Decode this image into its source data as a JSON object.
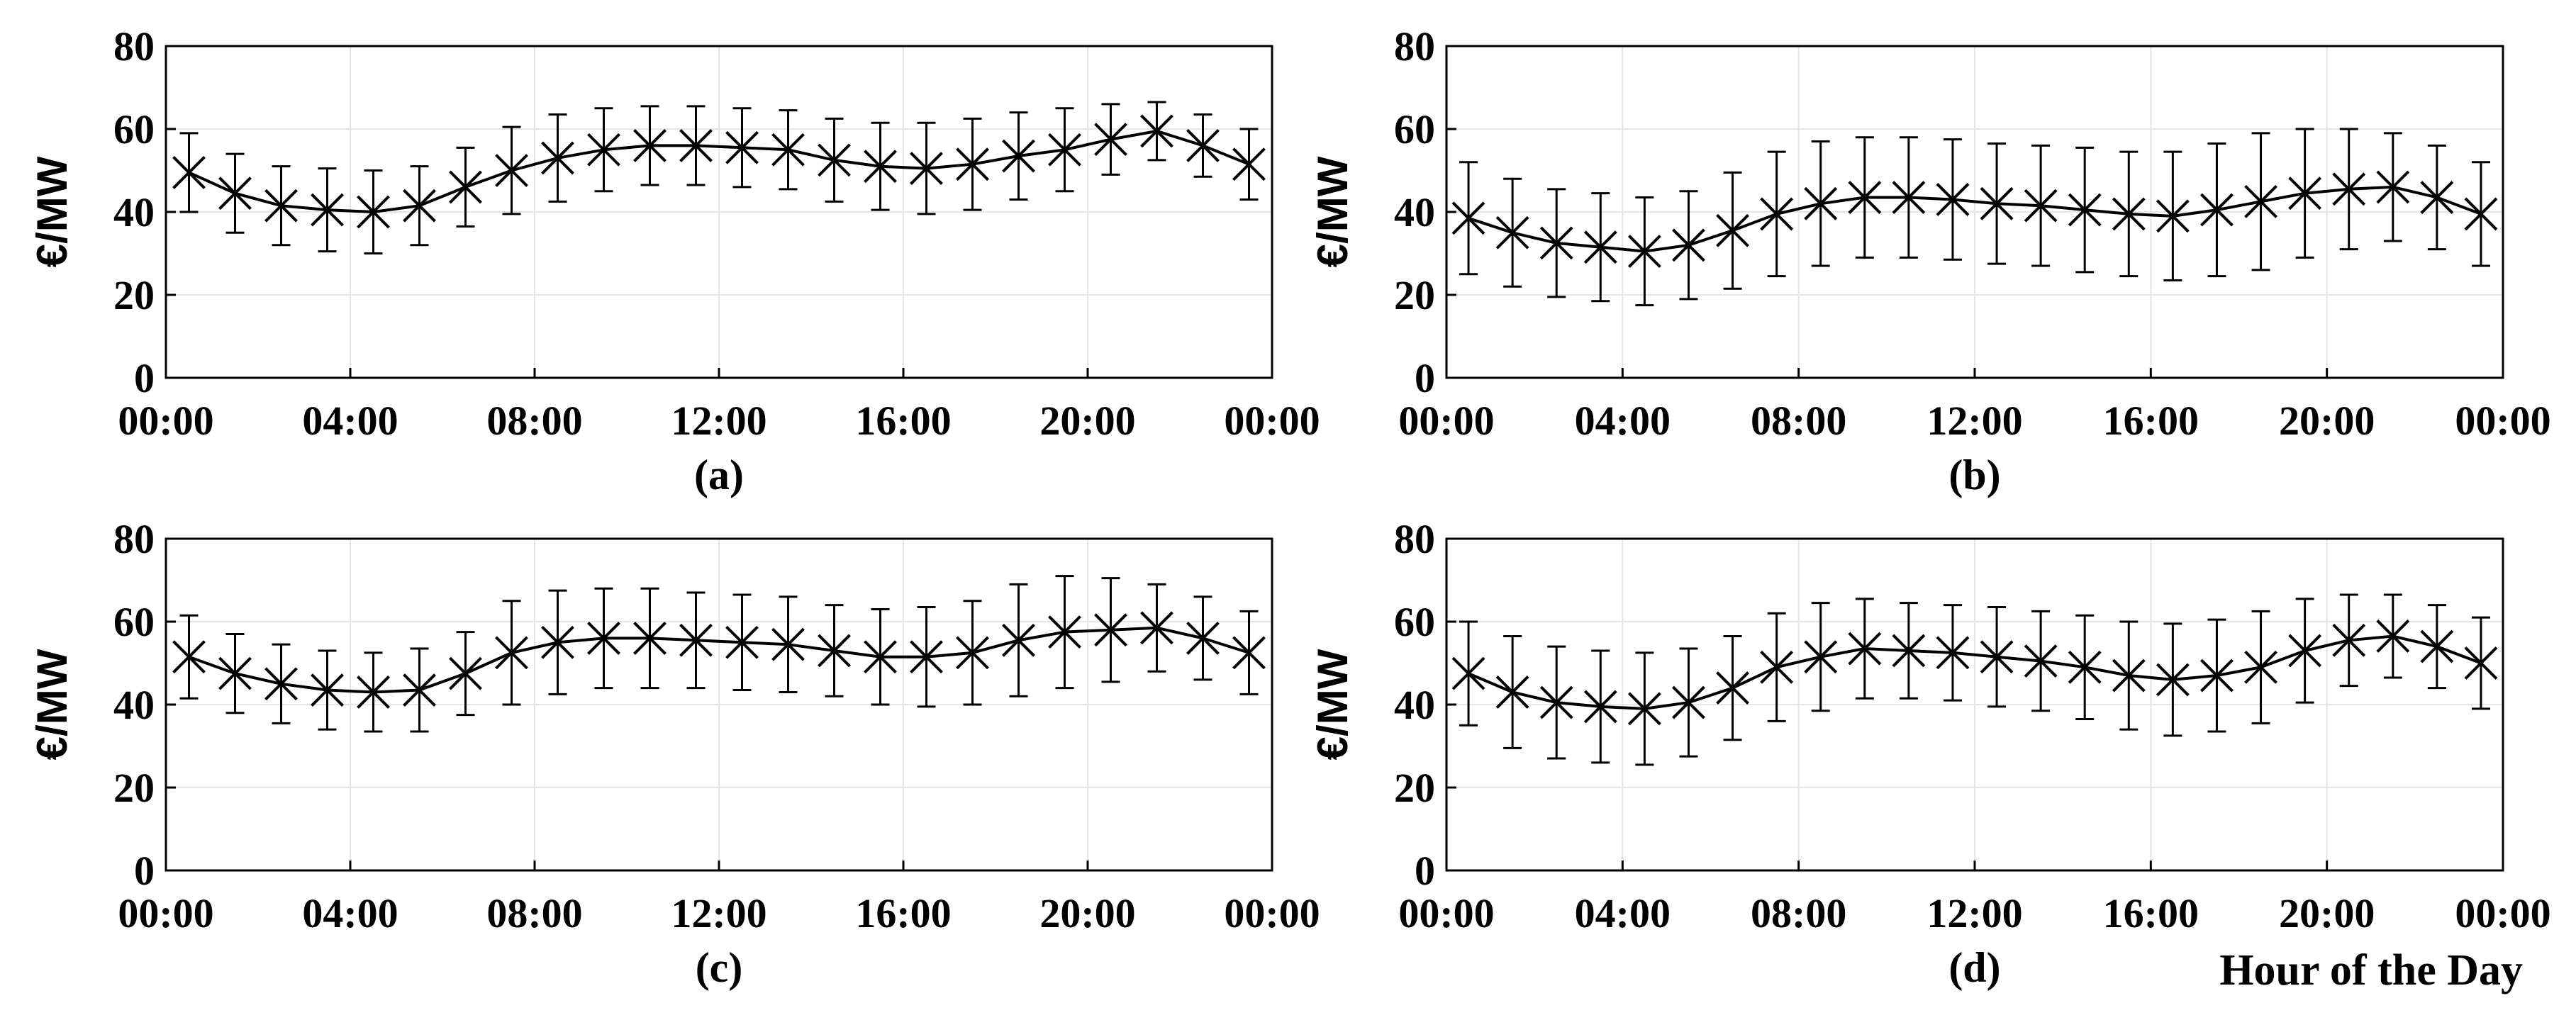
{
  "figure": {
    "xlabel": "Hour of the Day",
    "colors": {
      "line": "#000000",
      "grid": "#e6e6e6",
      "axis": "#000000",
      "background": "#ffffff"
    }
  },
  "chart_data": [
    {
      "type": "line",
      "panel": "(a)",
      "ylabel": "€/MW",
      "ylim": [
        0,
        80
      ],
      "yticks": [
        0,
        20,
        40,
        60,
        80
      ],
      "xlim": [
        0,
        24
      ],
      "xticks": [
        "00:00",
        "04:00",
        "08:00",
        "12:00",
        "16:00",
        "20:00",
        "00:00"
      ],
      "grid": true,
      "x": [
        0.5,
        1.5,
        2.5,
        3.5,
        4.5,
        5.5,
        6.5,
        7.5,
        8.5,
        9.5,
        10.5,
        11.5,
        12.5,
        13.5,
        14.5,
        15.5,
        16.5,
        17.5,
        18.5,
        19.5,
        20.5,
        21.5,
        22.5,
        23.5
      ],
      "mean": [
        49.5,
        44.5,
        41.5,
        40.5,
        40,
        41.5,
        46,
        50,
        53,
        55,
        56,
        56,
        55.5,
        55,
        52.5,
        51,
        50.5,
        51.5,
        53.5,
        55,
        57.5,
        59.5,
        56,
        51.5
      ],
      "std": [
        9.5,
        9.5,
        9.5,
        10,
        10,
        9.5,
        9.5,
        10.5,
        10.5,
        10,
        9.5,
        9.5,
        9.5,
        9.5,
        10,
        10.5,
        11,
        11,
        10.5,
        10,
        8.5,
        7,
        7.5,
        8.5
      ]
    },
    {
      "type": "line",
      "panel": "(b)",
      "ylabel": "€/MW",
      "ylim": [
        0,
        80
      ],
      "yticks": [
        0,
        20,
        40,
        60,
        80
      ],
      "xlim": [
        0,
        24
      ],
      "xticks": [
        "00:00",
        "04:00",
        "08:00",
        "12:00",
        "16:00",
        "20:00",
        "00:00"
      ],
      "grid": true,
      "x": [
        0.5,
        1.5,
        2.5,
        3.5,
        4.5,
        5.5,
        6.5,
        7.5,
        8.5,
        9.5,
        10.5,
        11.5,
        12.5,
        13.5,
        14.5,
        15.5,
        16.5,
        17.5,
        18.5,
        19.5,
        20.5,
        21.5,
        22.5,
        23.5
      ],
      "mean": [
        38.5,
        35,
        32.5,
        31.5,
        30.5,
        32,
        35.5,
        39.5,
        42,
        43.5,
        43.5,
        43,
        42,
        41.5,
        40.5,
        39.5,
        39,
        40.5,
        42.5,
        44.5,
        45.5,
        46,
        43.5,
        39.5
      ],
      "std": [
        13.5,
        13,
        13,
        13,
        13,
        13,
        14,
        15,
        15,
        14.5,
        14.5,
        14.5,
        14.5,
        14.5,
        15,
        15,
        15.5,
        16,
        16.5,
        15.5,
        14.5,
        13,
        12.5,
        12.5
      ]
    },
    {
      "type": "line",
      "panel": "(c)",
      "ylabel": "€/MW",
      "ylim": [
        0,
        80
      ],
      "yticks": [
        0,
        20,
        40,
        60,
        80
      ],
      "xlim": [
        0,
        24
      ],
      "xticks": [
        "00:00",
        "04:00",
        "08:00",
        "12:00",
        "16:00",
        "20:00",
        "00:00"
      ],
      "grid": true,
      "x": [
        0.5,
        1.5,
        2.5,
        3.5,
        4.5,
        5.5,
        6.5,
        7.5,
        8.5,
        9.5,
        10.5,
        11.5,
        12.5,
        13.5,
        14.5,
        15.5,
        16.5,
        17.5,
        18.5,
        19.5,
        20.5,
        21.5,
        22.5,
        23.5
      ],
      "mean": [
        51.5,
        47.5,
        45,
        43.5,
        43,
        43.5,
        47.5,
        52.5,
        55,
        56,
        56,
        55.5,
        55,
        54.5,
        53,
        51.5,
        51.5,
        52.5,
        55.5,
        57.5,
        58,
        58.5,
        56,
        52.5
      ],
      "std": [
        10,
        9.5,
        9.5,
        9.5,
        9.5,
        10,
        10,
        12.5,
        12.5,
        12,
        12,
        11.5,
        11.5,
        11.5,
        11,
        11.5,
        12,
        12.5,
        13.5,
        13.5,
        12.5,
        10.5,
        10,
        10
      ]
    },
    {
      "type": "line",
      "panel": "(d)",
      "ylabel": "€/MW",
      "ylim": [
        0,
        80
      ],
      "yticks": [
        0,
        20,
        40,
        60,
        80
      ],
      "xlim": [
        0,
        24
      ],
      "xticks": [
        "00:00",
        "04:00",
        "08:00",
        "12:00",
        "16:00",
        "20:00",
        "00:00"
      ],
      "grid": true,
      "x": [
        0.5,
        1.5,
        2.5,
        3.5,
        4.5,
        5.5,
        6.5,
        7.5,
        8.5,
        9.5,
        10.5,
        11.5,
        12.5,
        13.5,
        14.5,
        15.5,
        16.5,
        17.5,
        18.5,
        19.5,
        20.5,
        21.5,
        22.5,
        23.5
      ],
      "mean": [
        47.5,
        43,
        40.5,
        39.5,
        39,
        40.5,
        44,
        49,
        51.5,
        53.5,
        53,
        52.5,
        51.5,
        50.5,
        49,
        47,
        46,
        47,
        49,
        53,
        55.5,
        56.5,
        54,
        50
      ],
      "std": [
        12.5,
        13.5,
        13.5,
        13.5,
        13.5,
        13,
        12.5,
        13,
        13,
        12,
        11.5,
        11.5,
        12,
        12,
        12.5,
        13,
        13.5,
        13.5,
        13.5,
        12.5,
        11,
        10,
        10,
        11
      ]
    }
  ]
}
